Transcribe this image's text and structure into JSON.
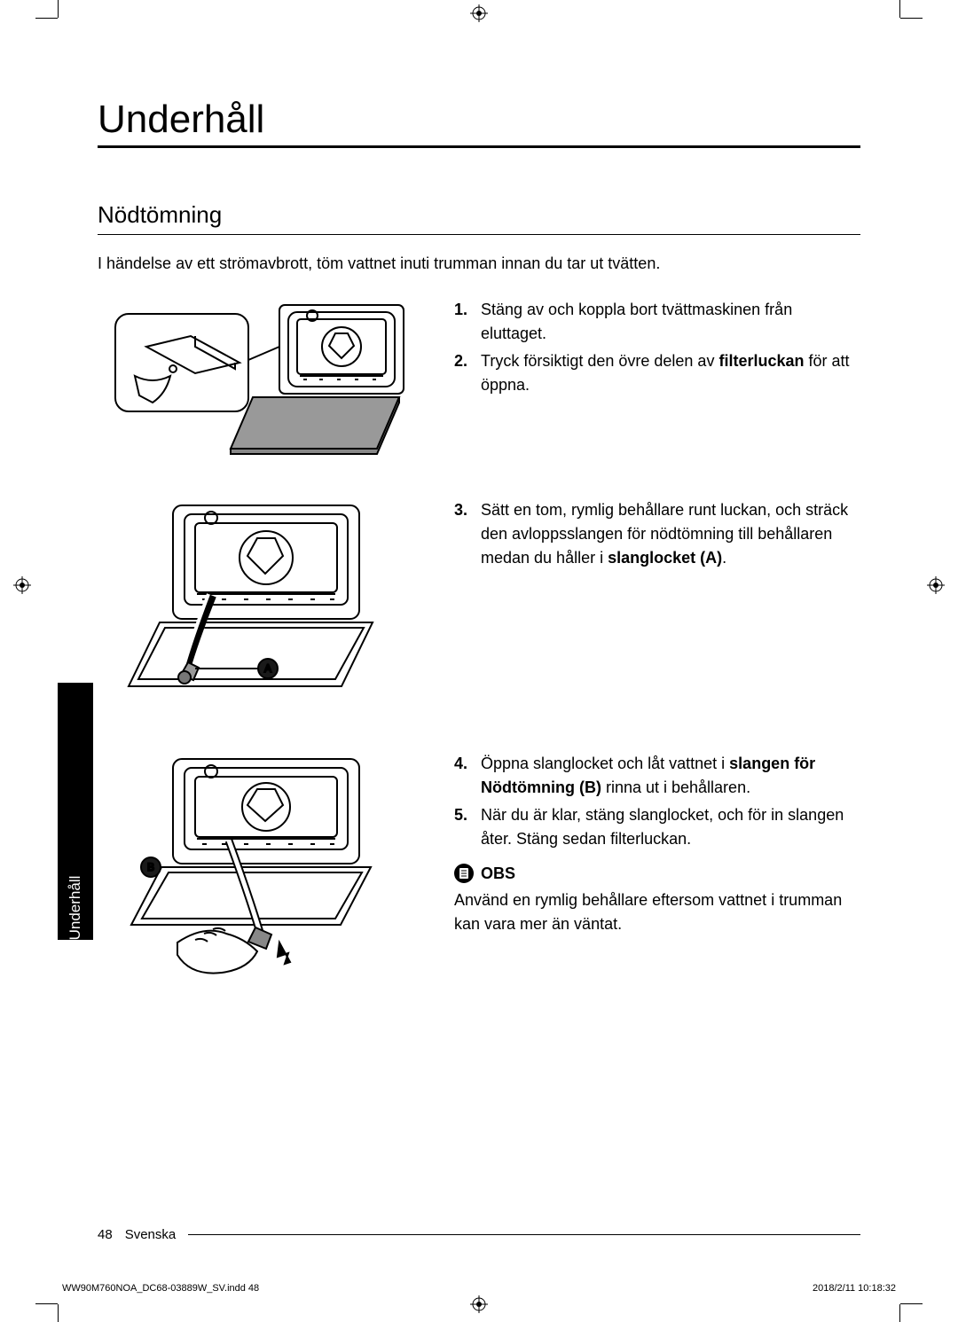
{
  "main_title": "Underhåll",
  "section_title": "Nödtömning",
  "intro": "I händelse av ett strömavbrott, töm vattnet inuti trumman innan du tar ut tvätten.",
  "steps_block1": {
    "start": 0,
    "items": [
      {
        "pre": "Stäng av och koppla bort tvättmaskinen från eluttaget.",
        "bold": "",
        "post": ""
      },
      {
        "pre": "Tryck försiktigt den övre delen av ",
        "bold": "filterluckan",
        "post": " för att öppna."
      }
    ]
  },
  "steps_block2": {
    "start": 2,
    "items": [
      {
        "pre": "Sätt en tom, rymlig behållare runt luckan, och sträck den avloppsslangen för nödtömning till behållaren medan du håller i ",
        "bold": "slanglocket (A)",
        "post": "."
      }
    ]
  },
  "steps_block3": {
    "start": 3,
    "items": [
      {
        "pre": "Öppna slanglocket och låt vattnet i ",
        "bold": "slangen för Nödtömning (B)",
        "post": " rinna ut i behållaren."
      },
      {
        "pre": "När du är klar, stäng slanglocket, och för in slangen åter. Stäng sedan filterluckan.",
        "bold": "",
        "post": ""
      }
    ]
  },
  "note_label": "OBS",
  "note_text": "Använd en rymlig behållare eftersom vattnet i trumman kan vara mer än väntat.",
  "side_tab": "Underhåll",
  "page_number": "48",
  "language": "Svenska",
  "doc_meta_left": "WW90M760NOA_DC68-03889W_SV.indd   48",
  "doc_meta_right": "2018/2/11   10:18:32",
  "callout_a": "A",
  "callout_b": "B",
  "colors": {
    "text": "#000000",
    "background": "#ffffff",
    "tab_bg": "#000000",
    "tab_text": "#ffffff",
    "badge_bg": "#1a1a1a"
  }
}
